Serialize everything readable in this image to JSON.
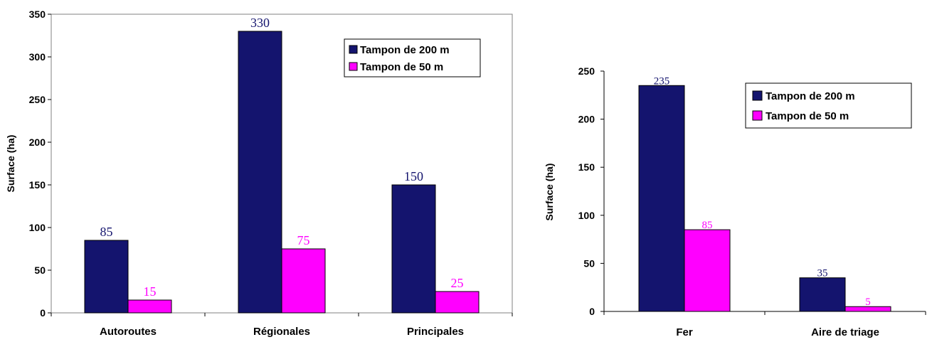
{
  "chart_data": [
    {
      "type": "bar",
      "title": "",
      "xlabel": "",
      "ylabel": "Surface (ha)",
      "ylim": [
        0,
        350
      ],
      "yticks": [
        "0",
        "50",
        "100",
        "150",
        "200",
        "250",
        "300",
        "350"
      ],
      "categories": [
        "Autoroutes",
        "Régionales",
        "Principales"
      ],
      "series": [
        {
          "name": "Tampon de 200 m",
          "values": [
            85,
            330,
            150
          ],
          "labels": [
            "85",
            "330",
            "150"
          ],
          "color": "#14146e"
        },
        {
          "name": "Tampon de 50 m",
          "values": [
            15,
            75,
            25
          ],
          "labels": [
            "15",
            "75",
            "25"
          ],
          "color": "#ff00ff"
        }
      ],
      "legend": "top-right",
      "grid": false
    },
    {
      "type": "bar",
      "title": "",
      "xlabel": "",
      "ylabel": "Surface (ha)",
      "ylim": [
        0,
        250
      ],
      "yticks": [
        "0",
        "50",
        "100",
        "150",
        "200",
        "250"
      ],
      "categories": [
        "Fer",
        "Aire de triage"
      ],
      "series": [
        {
          "name": "Tampon de 200 m",
          "values": [
            235,
            35
          ],
          "labels": [
            "235",
            "35"
          ],
          "color": "#14146e"
        },
        {
          "name": "Tampon de 50 m",
          "values": [
            85,
            5
          ],
          "labels": [
            "85",
            "5"
          ],
          "color": "#ff00ff"
        }
      ],
      "legend": "top-right",
      "grid": false
    }
  ]
}
